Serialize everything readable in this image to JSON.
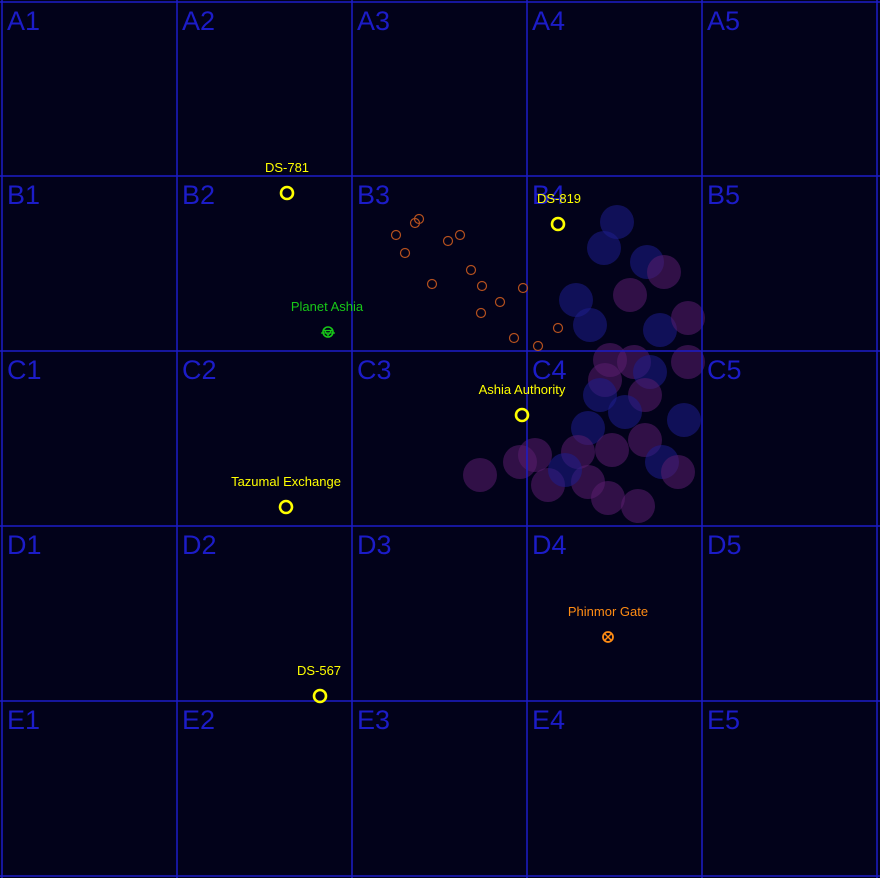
{
  "map": {
    "grid": {
      "rows": [
        "A",
        "B",
        "C",
        "D",
        "E"
      ],
      "cols": [
        "1",
        "2",
        "3",
        "4",
        "5"
      ],
      "line_color": "#1c1cc8",
      "background": "#02021a"
    },
    "cell_labels": [
      "A1",
      "A2",
      "A3",
      "A4",
      "A5",
      "B1",
      "B2",
      "B3",
      "B4",
      "B5",
      "C1",
      "C2",
      "C3",
      "C4",
      "C5",
      "D1",
      "D2",
      "D3",
      "D4",
      "D5",
      "E1",
      "E2",
      "E3",
      "E4",
      "E5"
    ],
    "objects": [
      {
        "id": "ds-781",
        "label": "DS-781",
        "kind": "station",
        "color": "#ffff00",
        "icon": "ring-icon"
      },
      {
        "id": "ds-819",
        "label": "DS-819",
        "kind": "station",
        "color": "#ffff00",
        "icon": "ring-icon"
      },
      {
        "id": "planet-ashia",
        "label": "Planet Ashia",
        "kind": "planet",
        "color": "#18c818",
        "icon": "planet-icon"
      },
      {
        "id": "ashia-authority",
        "label": "Ashia Authority",
        "kind": "station",
        "color": "#ffff00",
        "icon": "ring-icon"
      },
      {
        "id": "tazumal-exchange",
        "label": "Tazumal Exchange",
        "kind": "station",
        "color": "#ffff00",
        "icon": "ring-icon"
      },
      {
        "id": "phinmor-gate",
        "label": "Phinmor Gate",
        "kind": "jump-gate",
        "color": "#ff8c14",
        "icon": "gate-icon"
      },
      {
        "id": "ds-567",
        "label": "DS-567",
        "kind": "station",
        "color": "#ffff00",
        "icon": "ring-icon"
      }
    ],
    "asteroid_field": {
      "color": "#b4501e",
      "icon": "asteroid-icon"
    },
    "nebula": {
      "colors": [
        "#1e1e8c",
        "#5a1e6e"
      ]
    }
  }
}
